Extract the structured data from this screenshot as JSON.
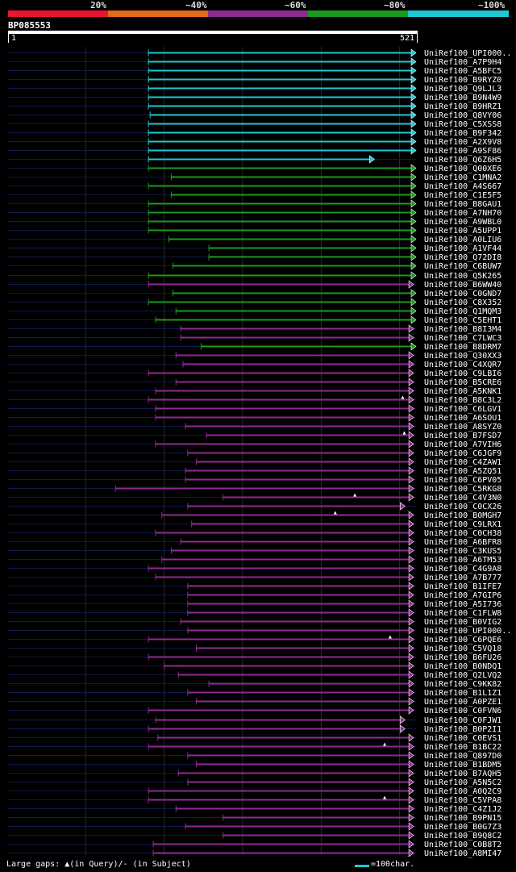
{
  "query": {
    "id": "BP085553",
    "start": "1",
    "end": "521",
    "length": 521
  },
  "legend": {
    "labels": [
      "20%",
      "~40%",
      "~60%",
      "~80%",
      "~100%"
    ],
    "colors": [
      "#e8172f",
      "#e26a1e",
      "#8f2a93",
      "#1a9a1c",
      "#1ec8d2"
    ]
  },
  "footer": {
    "gaps_text": "Large gaps: ▲(in Query)/- (in Subject)",
    "scale_text": "=100char."
  },
  "hits": [
    {
      "label": "UniRef100_UPI000..",
      "color": "#1ec8d2",
      "qs": 180,
      "qe": 521,
      "marks": []
    },
    {
      "label": "UniRef100_A7P9H4",
      "color": "#1ec8d2",
      "qs": 180,
      "qe": 521,
      "marks": []
    },
    {
      "label": "UniRef100_A5BFC5",
      "color": "#1ec8d2",
      "qs": 180,
      "qe": 521,
      "marks": []
    },
    {
      "label": "UniRef100_B9RYZ0",
      "color": "#1ec8d2",
      "qs": 180,
      "qe": 521,
      "marks": []
    },
    {
      "label": "UniRef100_Q9LJL3",
      "color": "#1ec8d2",
      "qs": 180,
      "qe": 521,
      "marks": []
    },
    {
      "label": "UniRef100_B9N4W9",
      "color": "#1ec8d2",
      "qs": 180,
      "qe": 521,
      "marks": []
    },
    {
      "label": "UniRef100_B9HRZ1",
      "color": "#1ec8d2",
      "qs": 180,
      "qe": 521,
      "marks": []
    },
    {
      "label": "UniRef100_Q8VY06",
      "color": "#1ec8d2",
      "qs": 182,
      "qe": 521,
      "marks": []
    },
    {
      "label": "UniRef100_C5XSS8",
      "color": "#1ec8d2",
      "qs": 180,
      "qe": 521,
      "marks": []
    },
    {
      "label": "UniRef100_B9F342",
      "color": "#1ec8d2",
      "qs": 180,
      "qe": 521,
      "marks": []
    },
    {
      "label": "UniRef100_A2X9V8",
      "color": "#1ec8d2",
      "qs": 180,
      "qe": 521,
      "marks": []
    },
    {
      "label": "UniRef100_A9SF86",
      "color": "#1ec8d2",
      "qs": 180,
      "qe": 521,
      "marks": []
    },
    {
      "label": "UniRef100_Q6Z6H5",
      "color": "#1ec8d2",
      "qs": 180,
      "qe": 468,
      "marks": []
    },
    {
      "label": "UniRef100_Q00XE6",
      "color": "#1a9a1c",
      "qs": 180,
      "qe": 521,
      "marks": []
    },
    {
      "label": "UniRef100_C1MNA2",
      "color": "#1a9a1c",
      "qs": 209,
      "qe": 521,
      "marks": []
    },
    {
      "label": "UniRef100_A4S667",
      "color": "#1a9a1c",
      "qs": 180,
      "qe": 521,
      "marks": []
    },
    {
      "label": "UniRef100_C1E5F5",
      "color": "#1a9a1c",
      "qs": 209,
      "qe": 521,
      "marks": []
    },
    {
      "label": "UniRef100_B8GAU1",
      "color": "#1a9a1c",
      "qs": 180,
      "qe": 521,
      "marks": []
    },
    {
      "label": "UniRef100_A7NH70",
      "color": "#1a9a1c",
      "qs": 180,
      "qe": 521,
      "marks": []
    },
    {
      "label": "UniRef100_A9WBL0",
      "color": "#1a9a1c",
      "qs": 180,
      "qe": 521,
      "marks": []
    },
    {
      "label": "UniRef100_A5UPP1",
      "color": "#1a9a1c",
      "qs": 180,
      "qe": 521,
      "marks": []
    },
    {
      "label": "UniRef100_A0LIU6",
      "color": "#1a9a1c",
      "qs": 206,
      "qe": 521,
      "marks": []
    },
    {
      "label": "UniRef100_A1VF44",
      "color": "#1a9a1c",
      "qs": 257,
      "qe": 521,
      "marks": []
    },
    {
      "label": "UniRef100_Q72DI8",
      "color": "#1a9a1c",
      "qs": 257,
      "qe": 521,
      "marks": []
    },
    {
      "label": "UniRef100_C6BUW7",
      "color": "#1a9a1c",
      "qs": 211,
      "qe": 521,
      "marks": []
    },
    {
      "label": "UniRef100_Q5K265",
      "color": "#1a9a1c",
      "qs": 180,
      "qe": 521,
      "marks": []
    },
    {
      "label": "UniRef100_B6WW40",
      "color": "#8f2a93",
      "qs": 180,
      "qe": 518,
      "marks": []
    },
    {
      "label": "UniRef100_C0GND7",
      "color": "#1a9a1c",
      "qs": 211,
      "qe": 521,
      "marks": []
    },
    {
      "label": "UniRef100_C8X352",
      "color": "#1a9a1c",
      "qs": 180,
      "qe": 521,
      "marks": []
    },
    {
      "label": "UniRef100_Q1MQM3",
      "color": "#1a9a1c",
      "qs": 215,
      "qe": 521,
      "marks": []
    },
    {
      "label": "UniRef100_C5EHT1",
      "color": "#1a9a1c",
      "qs": 189,
      "qe": 521,
      "marks": []
    },
    {
      "label": "UniRef100_B8I3M4",
      "color": "#8f2a93",
      "qs": 221,
      "qe": 518,
      "marks": []
    },
    {
      "label": "UniRef100_C7LWC3",
      "color": "#8f2a93",
      "qs": 221,
      "qe": 518,
      "marks": []
    },
    {
      "label": "UniRef100_B8DRM7",
      "color": "#1a9a1c",
      "qs": 247,
      "qe": 521,
      "marks": []
    },
    {
      "label": "UniRef100_Q30XX3",
      "color": "#8f2a93",
      "qs": 215,
      "qe": 518,
      "marks": []
    },
    {
      "label": "UniRef100_C4XQR7",
      "color": "#8f2a93",
      "qs": 224,
      "qe": 518,
      "marks": []
    },
    {
      "label": "UniRef100_C9LBI6",
      "color": "#8f2a93",
      "qs": 180,
      "qe": 518,
      "marks": []
    },
    {
      "label": "UniRef100_B5CRE6",
      "color": "#8f2a93",
      "qs": 215,
      "qe": 518,
      "marks": []
    },
    {
      "label": "UniRef100_A5KNK1",
      "color": "#8f2a93",
      "qs": 189,
      "qe": 518,
      "marks": []
    },
    {
      "label": "UniRef100_B8C3L2",
      "color": "#8f2a93",
      "qs": 180,
      "qe": 518,
      "marks": [
        504
      ]
    },
    {
      "label": "UniRef100_C6LGV1",
      "color": "#8f2a93",
      "qs": 189,
      "qe": 518,
      "marks": []
    },
    {
      "label": "UniRef100_A6SOU1",
      "color": "#8f2a93",
      "qs": 189,
      "qe": 518,
      "marks": []
    },
    {
      "label": "UniRef100_A8SYZ0",
      "color": "#8f2a93",
      "qs": 227,
      "qe": 518,
      "marks": []
    },
    {
      "label": "UniRef100_B7FSD7",
      "color": "#8f2a93",
      "qs": 254,
      "qe": 518,
      "marks": [
        506
      ]
    },
    {
      "label": "UniRef100_A7VIH6",
      "color": "#8f2a93",
      "qs": 189,
      "qe": 518,
      "marks": []
    },
    {
      "label": "UniRef100_C6JGF9",
      "color": "#8f2a93",
      "qs": 230,
      "qe": 518,
      "marks": []
    },
    {
      "label": "UniRef100_C4ZAW1",
      "color": "#8f2a93",
      "qs": 241,
      "qe": 518,
      "marks": []
    },
    {
      "label": "UniRef100_A5ZQ51",
      "color": "#8f2a93",
      "qs": 227,
      "qe": 518,
      "marks": []
    },
    {
      "label": "UniRef100_C6PV05",
      "color": "#8f2a93",
      "qs": 227,
      "qe": 518,
      "marks": []
    },
    {
      "label": "UniRef100_C5RKG8",
      "color": "#8f2a93",
      "qs": 138,
      "qe": 518,
      "marks": []
    },
    {
      "label": "UniRef100_C4V3N0",
      "color": "#8f2a93",
      "qs": 275,
      "qe": 518,
      "marks": [
        443
      ]
    },
    {
      "label": "UniRef100_C0CX26",
      "color": "#8f2a93",
      "qs": 230,
      "qe": 507,
      "marks": []
    },
    {
      "label": "UniRef100_B0MGH7",
      "color": "#8f2a93",
      "qs": 197,
      "qe": 518,
      "marks": [
        418
      ]
    },
    {
      "label": "UniRef100_C9LRX1",
      "color": "#8f2a93",
      "qs": 235,
      "qe": 518,
      "marks": []
    },
    {
      "label": "UniRef100_C0CH38",
      "color": "#8f2a93",
      "qs": 189,
      "qe": 518,
      "marks": []
    },
    {
      "label": "UniRef100_A6BFR8",
      "color": "#8f2a93",
      "qs": 221,
      "qe": 518,
      "marks": []
    },
    {
      "label": "UniRef100_C3KUS5",
      "color": "#8f2a93",
      "qs": 209,
      "qe": 518,
      "marks": []
    },
    {
      "label": "UniRef100_A6TM53",
      "color": "#8f2a93",
      "qs": 197,
      "qe": 518,
      "marks": []
    },
    {
      "label": "UniRef100_C4G9A8",
      "color": "#8f2a93",
      "qs": 180,
      "qe": 518,
      "marks": []
    },
    {
      "label": "UniRef100_A7B777",
      "color": "#8f2a93",
      "qs": 189,
      "qe": 518,
      "marks": []
    },
    {
      "label": "UniRef100_B1IFE7",
      "color": "#8f2a93",
      "qs": 230,
      "qe": 518,
      "marks": []
    },
    {
      "label": "UniRef100_A7GIP6",
      "color": "#8f2a93",
      "qs": 230,
      "qe": 518,
      "marks": []
    },
    {
      "label": "UniRef100_A5I736",
      "color": "#8f2a93",
      "qs": 230,
      "qe": 518,
      "marks": []
    },
    {
      "label": "UniRef100_C1FLW8",
      "color": "#8f2a93",
      "qs": 230,
      "qe": 518,
      "marks": []
    },
    {
      "label": "UniRef100_B0VIG2",
      "color": "#8f2a93",
      "qs": 221,
      "qe": 518,
      "marks": []
    },
    {
      "label": "UniRef100_UPI000..",
      "color": "#8f2a93",
      "qs": 230,
      "qe": 518,
      "marks": []
    },
    {
      "label": "UniRef100_C6PQE6",
      "color": "#8f2a93",
      "qs": 180,
      "qe": 518,
      "marks": [
        488
      ]
    },
    {
      "label": "UniRef100_C5VQ18",
      "color": "#8f2a93",
      "qs": 241,
      "qe": 518,
      "marks": []
    },
    {
      "label": "UniRef100_B6FU26",
      "color": "#8f2a93",
      "qs": 180,
      "qe": 518,
      "marks": []
    },
    {
      "label": "UniRef100_B0NDQ1",
      "color": "#8f2a93",
      "qs": 200,
      "qe": 518,
      "marks": []
    },
    {
      "label": "UniRef100_Q2LVQ2",
      "color": "#8f2a93",
      "qs": 218,
      "qe": 518,
      "marks": []
    },
    {
      "label": "UniRef100_C9KK82",
      "color": "#8f2a93",
      "qs": 257,
      "qe": 518,
      "marks": []
    },
    {
      "label": "UniRef100_B1L1Z1",
      "color": "#8f2a93",
      "qs": 230,
      "qe": 518,
      "marks": []
    },
    {
      "label": "UniRef100_A0PZE1",
      "color": "#8f2a93",
      "qs": 241,
      "qe": 518,
      "marks": []
    },
    {
      "label": "UniRef100_C0FVN6",
      "color": "#8f2a93",
      "qs": 180,
      "qe": 518,
      "marks": []
    },
    {
      "label": "UniRef100_C0FJW1",
      "color": "#8f2a93",
      "qs": 189,
      "qe": 507,
      "marks": []
    },
    {
      "label": "UniRef100_B0P2I1",
      "color": "#8f2a93",
      "qs": 180,
      "qe": 507,
      "marks": []
    },
    {
      "label": "UniRef100_C0EVS1",
      "color": "#8f2a93",
      "qs": 192,
      "qe": 518,
      "marks": []
    },
    {
      "label": "UniRef100_B1BC22",
      "color": "#8f2a93",
      "qs": 180,
      "qe": 518,
      "marks": [
        481
      ]
    },
    {
      "label": "UniRef100_Q897D0",
      "color": "#8f2a93",
      "qs": 230,
      "qe": 518,
      "marks": []
    },
    {
      "label": "UniRef100_B1BDM5",
      "color": "#8f2a93",
      "qs": 241,
      "qe": 518,
      "marks": []
    },
    {
      "label": "UniRef100_B7AQH5",
      "color": "#8f2a93",
      "qs": 218,
      "qe": 518,
      "marks": []
    },
    {
      "label": "UniRef100_A5N5C2",
      "color": "#8f2a93",
      "qs": 230,
      "qe": 518,
      "marks": []
    },
    {
      "label": "UniRef100_A0Q2C9",
      "color": "#8f2a93",
      "qs": 180,
      "qe": 518,
      "marks": []
    },
    {
      "label": "UniRef100_C5VPA8",
      "color": "#8f2a93",
      "qs": 180,
      "qe": 518,
      "marks": [
        481
      ]
    },
    {
      "label": "UniRef100_C4Z1J2",
      "color": "#8f2a93",
      "qs": 215,
      "qe": 518,
      "marks": []
    },
    {
      "label": "UniRef100_B9PN15",
      "color": "#8f2a93",
      "qs": 275,
      "qe": 518,
      "marks": []
    },
    {
      "label": "UniRef100_B0G7Z3",
      "color": "#8f2a93",
      "qs": 227,
      "qe": 518,
      "marks": []
    },
    {
      "label": "UniRef100_B9Q8C2",
      "color": "#8f2a93",
      "qs": 275,
      "qe": 518,
      "marks": []
    },
    {
      "label": "UniRef100_C0B8T2",
      "color": "#8f2a93",
      "qs": 186,
      "qe": 518,
      "marks": []
    },
    {
      "label": "UniRef100_A8MI47",
      "color": "#8f2a93",
      "qs": 186,
      "qe": 518,
      "marks": []
    }
  ]
}
